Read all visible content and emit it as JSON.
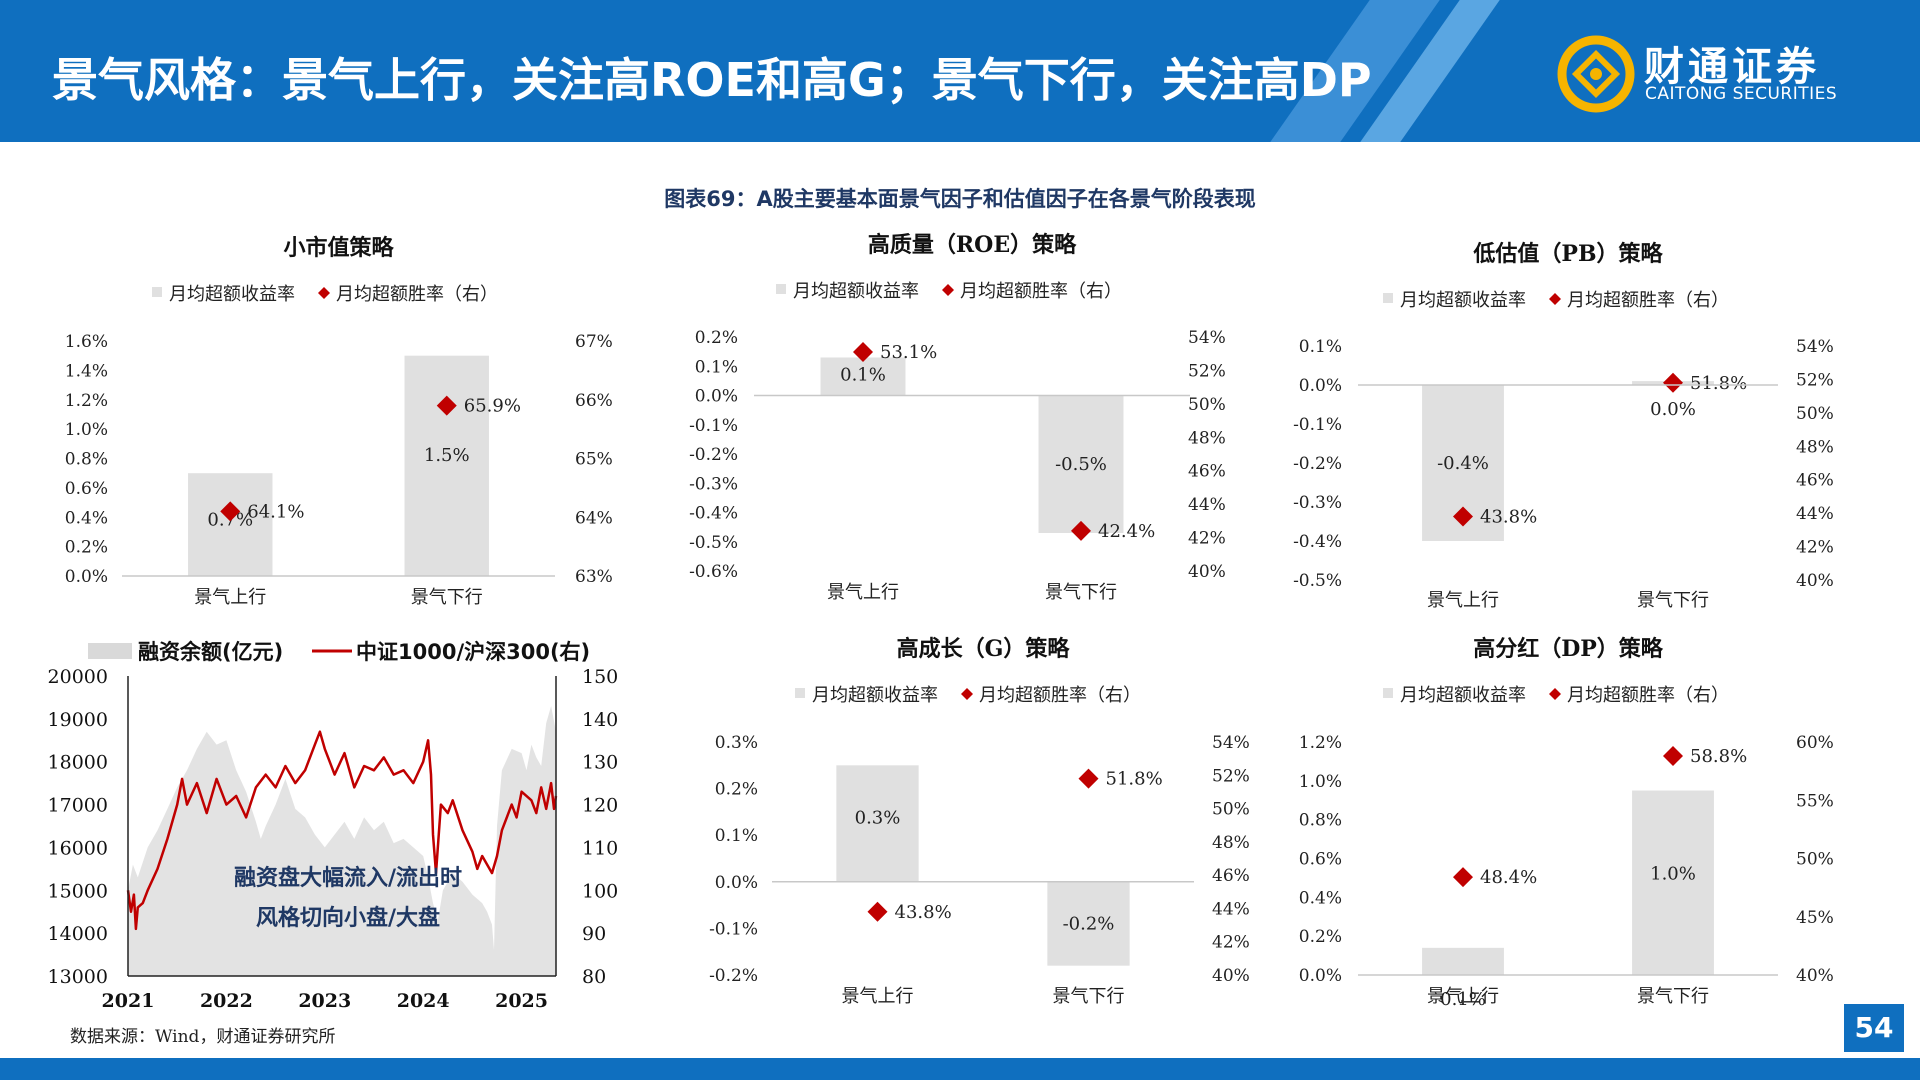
{
  "header": {
    "title": "景气风格：景气上行，关注高ROE和高G；景气下行，关注高DP",
    "logo_cn": "财通证券",
    "logo_en": "CAITONG SECURITIES",
    "colors": {
      "primary": "#0f6fbf",
      "accent": "#c00000",
      "bar": "#e0e0e0"
    }
  },
  "figure_title": "图表69：A股主要基本面景气因子和估值因子在各景气阶段表现",
  "source": "数据来源：Wind，财通证券研究所",
  "page_number": "54",
  "chart_data": [
    {
      "id": "small-cap",
      "type": "bar",
      "title": "小市值策略",
      "legend": [
        "月均超额收益率",
        "月均超额胜率（右）"
      ],
      "categories": [
        "景气上行",
        "景气下行"
      ],
      "bar_values": [
        0.7,
        1.5
      ],
      "bar_labels": [
        "0.7%",
        "1.5%"
      ],
      "line_values": [
        64.1,
        65.9
      ],
      "line_labels": [
        "64.1%",
        "65.9%"
      ],
      "ylim": [
        0,
        1.6
      ],
      "yticks": [
        0,
        0.2,
        0.4,
        0.6,
        0.8,
        1.0,
        1.2,
        1.4,
        1.6
      ],
      "ytick_decimals": 1,
      "y2lim": [
        63,
        67
      ],
      "y2ticks": [
        63,
        64,
        65,
        66,
        67
      ],
      "y2tick_decimals": 0
    },
    {
      "id": "roe",
      "type": "bar",
      "title": "高质量（ROE）策略",
      "legend": [
        "月均超额收益率",
        "月均超额胜率（右）"
      ],
      "categories": [
        "景气上行",
        "景气下行"
      ],
      "bar_values": [
        0.13,
        -0.47
      ],
      "bar_labels": [
        "0.1%",
        "-0.5%"
      ],
      "line_values": [
        53.1,
        42.4
      ],
      "line_labels": [
        "53.1%",
        "42.4%"
      ],
      "ylim": [
        -0.6,
        0.2
      ],
      "yticks": [
        -0.6,
        -0.5,
        -0.4,
        -0.3,
        -0.2,
        -0.1,
        0.0,
        0.1,
        0.2
      ],
      "ytick_decimals": 1,
      "y2lim": [
        40,
        54
      ],
      "y2ticks": [
        40,
        42,
        44,
        46,
        48,
        50,
        52,
        54
      ],
      "y2tick_decimals": 0
    },
    {
      "id": "pb",
      "type": "bar",
      "title": "低估值（PB）策略",
      "legend": [
        "月均超额收益率",
        "月均超额胜率（右）"
      ],
      "categories": [
        "景气上行",
        "景气下行"
      ],
      "bar_values": [
        -0.4,
        0.01
      ],
      "bar_labels": [
        "-0.4%",
        "0.0%"
      ],
      "line_values": [
        43.8,
        51.8
      ],
      "line_labels": [
        "43.8%",
        "51.8%"
      ],
      "ylim": [
        -0.5,
        0.1
      ],
      "yticks": [
        -0.5,
        -0.4,
        -0.3,
        -0.2,
        -0.1,
        0.0,
        0.1
      ],
      "ytick_decimals": 1,
      "y2lim": [
        40,
        54
      ],
      "y2ticks": [
        40,
        42,
        44,
        46,
        48,
        50,
        52,
        54
      ],
      "y2tick_decimals": 0
    },
    {
      "id": "growth",
      "type": "bar",
      "title": "高成长（G）策略",
      "legend": [
        "月均超额收益率",
        "月均超额胜率（右）"
      ],
      "categories": [
        "景气上行",
        "景气下行"
      ],
      "bar_values": [
        0.25,
        -0.18
      ],
      "bar_labels": [
        "0.3%",
        "-0.2%"
      ],
      "line_values": [
        43.8,
        51.8
      ],
      "line_labels": [
        "43.8%",
        "51.8%"
      ],
      "ylim": [
        -0.2,
        0.3
      ],
      "yticks": [
        -0.2,
        -0.1,
        0.0,
        0.1,
        0.2,
        0.3
      ],
      "ytick_decimals": 1,
      "y2lim": [
        40,
        54
      ],
      "y2ticks": [
        40,
        42,
        44,
        46,
        48,
        50,
        52,
        54
      ],
      "y2tick_decimals": 0
    },
    {
      "id": "dividend",
      "type": "bar",
      "title": "高分红（DP）策略",
      "legend": [
        "月均超额收益率",
        "月均超额胜率（右）"
      ],
      "categories": [
        "景气上行",
        "景气下行"
      ],
      "bar_values": [
        0.14,
        0.95
      ],
      "bar_labels": [
        "0.1%",
        "1.0%"
      ],
      "line_values": [
        48.4,
        58.8
      ],
      "line_labels": [
        "48.4%",
        "58.8%"
      ],
      "ylim": [
        0,
        1.2
      ],
      "yticks": [
        0,
        0.2,
        0.4,
        0.6,
        0.8,
        1.0,
        1.2
      ],
      "ytick_decimals": 1,
      "y2lim": [
        40,
        60
      ],
      "y2ticks": [
        40,
        45,
        50,
        55,
        60
      ],
      "y2tick_decimals": 0
    },
    {
      "id": "margin",
      "type": "area+line",
      "legend": [
        "融资余额(亿元)",
        "中证1000/沪深300(右)"
      ],
      "annotation": [
        "融资盘大幅流入/流出时",
        "风格切向小盘/大盘"
      ],
      "xlabels": [
        "2021",
        "2022",
        "2023",
        "2024",
        "2025"
      ],
      "xlim": [
        2021.0,
        2025.35
      ],
      "ylim": [
        13000,
        20000
      ],
      "yticks": [
        13000,
        14000,
        15000,
        16000,
        17000,
        18000,
        19000,
        20000
      ],
      "y2lim": [
        80,
        150
      ],
      "y2ticks": [
        80,
        90,
        100,
        110,
        120,
        130,
        140,
        150
      ],
      "area_series": [
        [
          2021.0,
          15000
        ],
        [
          2021.05,
          15600
        ],
        [
          2021.1,
          15300
        ],
        [
          2021.2,
          16000
        ],
        [
          2021.3,
          16400
        ],
        [
          2021.4,
          16900
        ],
        [
          2021.5,
          17400
        ],
        [
          2021.6,
          17800
        ],
        [
          2021.7,
          18300
        ],
        [
          2021.8,
          18700
        ],
        [
          2021.9,
          18400
        ],
        [
          2022.0,
          18500
        ],
        [
          2022.1,
          17800
        ],
        [
          2022.2,
          17300
        ],
        [
          2022.3,
          16600
        ],
        [
          2022.35,
          16200
        ],
        [
          2022.4,
          16500
        ],
        [
          2022.5,
          17000
        ],
        [
          2022.6,
          17600
        ],
        [
          2022.7,
          16900
        ],
        [
          2022.8,
          16700
        ],
        [
          2022.9,
          16300
        ],
        [
          2023.0,
          16000
        ],
        [
          2023.1,
          16300
        ],
        [
          2023.2,
          16600
        ],
        [
          2023.3,
          16200
        ],
        [
          2023.4,
          16700
        ],
        [
          2023.5,
          16400
        ],
        [
          2023.6,
          16600
        ],
        [
          2023.7,
          16100
        ],
        [
          2023.8,
          16200
        ],
        [
          2023.9,
          16000
        ],
        [
          2024.0,
          15800
        ],
        [
          2024.05,
          15300
        ],
        [
          2024.1,
          14700
        ],
        [
          2024.15,
          14300
        ],
        [
          2024.2,
          15000
        ],
        [
          2024.3,
          15400
        ],
        [
          2024.4,
          15200
        ],
        [
          2024.5,
          14900
        ],
        [
          2024.6,
          14700
        ],
        [
          2024.65,
          14500
        ],
        [
          2024.7,
          14200
        ],
        [
          2024.72,
          13600
        ],
        [
          2024.75,
          16500
        ],
        [
          2024.8,
          17800
        ],
        [
          2024.9,
          18300
        ],
        [
          2025.0,
          18200
        ],
        [
          2025.05,
          17800
        ],
        [
          2025.1,
          18400
        ],
        [
          2025.15,
          18100
        ],
        [
          2025.2,
          17900
        ],
        [
          2025.25,
          18900
        ],
        [
          2025.3,
          19300
        ],
        [
          2025.35,
          18700
        ]
      ],
      "line_series": [
        [
          2021.0,
          100
        ],
        [
          2021.03,
          95
        ],
        [
          2021.06,
          99
        ],
        [
          2021.08,
          91
        ],
        [
          2021.1,
          96
        ],
        [
          2021.15,
          97
        ],
        [
          2021.2,
          100
        ],
        [
          2021.3,
          105
        ],
        [
          2021.4,
          112
        ],
        [
          2021.5,
          120
        ],
        [
          2021.55,
          126
        ],
        [
          2021.6,
          120
        ],
        [
          2021.7,
          125
        ],
        [
          2021.8,
          118
        ],
        [
          2021.9,
          126
        ],
        [
          2022.0,
          120
        ],
        [
          2022.1,
          122
        ],
        [
          2022.2,
          117
        ],
        [
          2022.3,
          124
        ],
        [
          2022.4,
          127
        ],
        [
          2022.5,
          124
        ],
        [
          2022.6,
          129
        ],
        [
          2022.7,
          125
        ],
        [
          2022.8,
          128
        ],
        [
          2022.9,
          134
        ],
        [
          2022.95,
          137
        ],
        [
          2023.0,
          133
        ],
        [
          2023.05,
          130
        ],
        [
          2023.1,
          127
        ],
        [
          2023.2,
          132
        ],
        [
          2023.3,
          124
        ],
        [
          2023.4,
          129
        ],
        [
          2023.5,
          128
        ],
        [
          2023.6,
          131
        ],
        [
          2023.7,
          127
        ],
        [
          2023.8,
          128
        ],
        [
          2023.9,
          125
        ],
        [
          2024.0,
          130
        ],
        [
          2024.05,
          135
        ],
        [
          2024.08,
          127
        ],
        [
          2024.1,
          113
        ],
        [
          2024.13,
          104
        ],
        [
          2024.18,
          120
        ],
        [
          2024.25,
          118
        ],
        [
          2024.3,
          121
        ],
        [
          2024.4,
          114
        ],
        [
          2024.5,
          109
        ],
        [
          2024.55,
          105
        ],
        [
          2024.6,
          108
        ],
        [
          2024.7,
          104
        ],
        [
          2024.75,
          108
        ],
        [
          2024.8,
          114
        ],
        [
          2024.9,
          120
        ],
        [
          2024.95,
          117
        ],
        [
          2025.0,
          123
        ],
        [
          2025.1,
          121
        ],
        [
          2025.15,
          118
        ],
        [
          2025.2,
          124
        ],
        [
          2025.25,
          119
        ],
        [
          2025.3,
          125
        ],
        [
          2025.33,
          119
        ],
        [
          2025.35,
          122
        ]
      ]
    }
  ]
}
